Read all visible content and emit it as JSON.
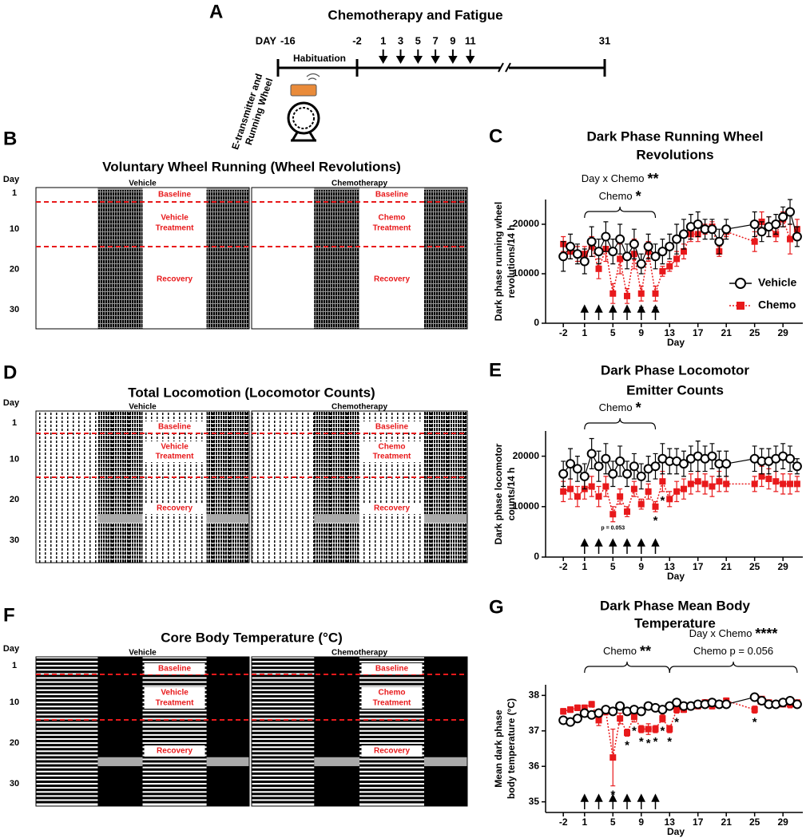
{
  "timeline": {
    "letter": "A",
    "title": "Chemotherapy and Fatigue",
    "day_prefix": "DAY",
    "start": -16,
    "treatment_start": -2,
    "dosing_days": [
      1,
      3,
      5,
      7,
      9,
      11
    ],
    "end": 31,
    "phase": "Habituation",
    "device": [
      "E-transmitter and",
      "Running Wheel"
    ]
  },
  "actograms": [
    {
      "letter": "B",
      "title": "Voluntary Wheel Running (Wheel Revolutions)",
      "day_label": "Day",
      "day_ticks": [
        1,
        10,
        20,
        30
      ],
      "panels": [
        {
          "name": "Vehicle",
          "phases": [
            [
              "Baseline"
            ],
            [
              "Vehicle",
              "Treatment"
            ],
            [
              "Recovery"
            ]
          ]
        },
        {
          "name": "Chemotherapy",
          "phases": [
            [
              "Baseline"
            ],
            [
              "Chemo",
              "Treatment"
            ],
            [
              "Recovery"
            ]
          ]
        }
      ]
    },
    {
      "letter": "D",
      "title": "Total Locomotion (Locomotor Counts)",
      "day_label": "Day",
      "day_ticks": [
        1,
        10,
        20,
        30
      ],
      "panels": [
        {
          "name": "Vehicle",
          "phases": [
            [
              "Baseline"
            ],
            [
              "Vehicle",
              "Treatment"
            ],
            [
              "Recovery"
            ]
          ]
        },
        {
          "name": "Chemotherapy",
          "phases": [
            [
              "Baseline"
            ],
            [
              "Chemo",
              "Treatment"
            ],
            [
              "Recovery"
            ]
          ]
        }
      ]
    },
    {
      "letter": "F",
      "title": "Core Body Temperature (°C)",
      "day_label": "Day",
      "day_ticks": [
        1,
        10,
        20,
        30
      ],
      "panels": [
        {
          "name": "Vehicle",
          "phases": [
            [
              "Baseline"
            ],
            [
              "Vehicle",
              "Treatment"
            ],
            [
              "Recovery"
            ]
          ]
        },
        {
          "name": "Chemotherapy",
          "phases": [
            [
              "Baseline"
            ],
            [
              "Chemo",
              "Treatment"
            ],
            [
              "Recovery"
            ]
          ]
        }
      ]
    }
  ],
  "chart_data": [
    {
      "type": "line",
      "letter": "C",
      "title": [
        "Dark Phase Running Wheel",
        "Revolutions"
      ],
      "ylabel": [
        "Dark phase running wheel",
        "revolutions/14 h"
      ],
      "xlabel": "Day",
      "x": [
        -2,
        -1,
        0,
        1,
        2,
        3,
        4,
        5,
        6,
        7,
        8,
        9,
        10,
        11,
        12,
        13,
        14,
        15,
        16,
        17,
        18,
        19,
        20,
        21,
        25,
        26,
        27,
        28,
        29,
        30,
        31
      ],
      "xlim": [
        -4.5,
        31.8
      ],
      "xticks": [
        -2,
        1,
        5,
        9,
        13,
        17,
        21,
        25,
        29
      ],
      "ylim": [
        0,
        25000
      ],
      "yticks": [
        0,
        10000,
        20000
      ],
      "legend": true,
      "legend_corner": "right",
      "dosing_days": [
        1,
        3,
        5,
        7,
        9,
        11
      ],
      "brackets": [
        {
          "from": 1,
          "to": 11,
          "lines": [
            {
              "text": "Day x Chemo",
              "stars": "**"
            },
            {
              "text": "Chemo",
              "stars": "*"
            }
          ]
        }
      ],
      "significance": [
        {
          "day": 5,
          "label": "*"
        },
        {
          "day": 7,
          "label": "*"
        },
        {
          "day": 9,
          "label": "*"
        },
        {
          "day": 11,
          "label": "*"
        }
      ],
      "series": [
        {
          "name": "Vehicle",
          "color": "#000000",
          "marker": "circle",
          "line_style": "solid",
          "values": [
            13500,
            15500,
            14000,
            12500,
            16500,
            14500,
            17500,
            14500,
            17000,
            13500,
            16000,
            12000,
            15500,
            13500,
            14500,
            15500,
            17000,
            18000,
            19500,
            20000,
            19000,
            19000,
            16500,
            19000,
            20000,
            18500,
            19500,
            20000,
            21500,
            22500,
            17500
          ],
          "errors": [
            3000,
            2500,
            2000,
            2500,
            3000,
            2500,
            3000,
            2500,
            3000,
            2500,
            3000,
            2000,
            2500,
            2500,
            2500,
            2500,
            3000,
            3000,
            2500,
            2500,
            2000,
            2000,
            2500,
            2000,
            2500,
            2000,
            2000,
            2000,
            2000,
            2500,
            2000
          ]
        },
        {
          "name": "Chemo",
          "color": "#e8191b",
          "marker": "square",
          "line_style": "dotted",
          "values": [
            16000,
            14500,
            14000,
            14000,
            15500,
            11000,
            15000,
            6000,
            13000,
            5500,
            14000,
            6000,
            14500,
            6000,
            10500,
            11500,
            13000,
            14500,
            18000,
            18000,
            19000,
            19500,
            14500,
            18500,
            16500,
            20500,
            19500,
            18000,
            21000,
            17000,
            19000
          ],
          "errors": [
            1500,
            1500,
            1500,
            1500,
            2000,
            2000,
            2500,
            2000,
            3000,
            1500,
            3000,
            1500,
            2000,
            1500,
            1000,
            1000,
            1500,
            1500,
            1500,
            1500,
            1000,
            1000,
            1000,
            1000,
            2000,
            2000,
            2000,
            1500,
            1500,
            3000,
            2000
          ]
        }
      ]
    },
    {
      "type": "line",
      "letter": "E",
      "title": [
        "Dark Phase Locomotor",
        "Emitter Counts"
      ],
      "ylabel": [
        "Dark phase locomotor",
        "counts/14 h"
      ],
      "xlabel": "Day",
      "x": [
        -2,
        -1,
        0,
        1,
        2,
        3,
        4,
        5,
        6,
        7,
        8,
        9,
        10,
        11,
        12,
        13,
        14,
        15,
        16,
        17,
        18,
        19,
        20,
        21,
        25,
        26,
        27,
        28,
        29,
        30,
        31
      ],
      "xlim": [
        -4.5,
        31.8
      ],
      "xticks": [
        -2,
        1,
        5,
        9,
        13,
        17,
        21,
        25,
        29
      ],
      "ylim": [
        0,
        25000
      ],
      "yticks": [
        0,
        10000,
        20000
      ],
      "legend": false,
      "dosing_days": [
        1,
        3,
        5,
        7,
        9,
        11
      ],
      "brackets": [
        {
          "from": 1,
          "to": 11,
          "lines": [
            {
              "text": "Chemo",
              "stars": "*"
            }
          ]
        }
      ],
      "significance": [
        {
          "day": 11,
          "label": "*"
        },
        {
          "day": 12,
          "label": "*"
        }
      ],
      "note": {
        "text": "p = 0.053",
        "day": 5
      },
      "series": [
        {
          "name": "Vehicle",
          "color": "#000000",
          "marker": "circle",
          "line_style": "solid",
          "values": [
            16500,
            18500,
            17500,
            16000,
            20500,
            18000,
            19500,
            16500,
            19000,
            16500,
            18000,
            16000,
            17500,
            18000,
            19500,
            19000,
            19000,
            18500,
            19500,
            20000,
            19500,
            20000,
            18500,
            18500,
            19500,
            19000,
            19000,
            19500,
            20000,
            19500,
            18000
          ],
          "errors": [
            2500,
            3000,
            2500,
            2500,
            3000,
            3000,
            3000,
            2500,
            3000,
            2500,
            2500,
            2500,
            2500,
            2500,
            3000,
            2500,
            2500,
            2500,
            2500,
            3000,
            2500,
            2500,
            2500,
            2500,
            2500,
            2500,
            2500,
            2500,
            2500,
            2500,
            1500
          ]
        },
        {
          "name": "Chemo",
          "color": "#e8191b",
          "marker": "square",
          "line_style": "dotted",
          "values": [
            13000,
            13500,
            12000,
            13500,
            14000,
            12000,
            14000,
            8500,
            12000,
            9000,
            13500,
            10500,
            13000,
            10000,
            15000,
            11500,
            13000,
            13500,
            14500,
            15000,
            14500,
            14000,
            15000,
            14500,
            14500,
            16000,
            15500,
            15000,
            14500,
            14500,
            14500
          ],
          "errors": [
            2000,
            2000,
            2000,
            2000,
            2000,
            2000,
            2000,
            1500,
            1500,
            1000,
            1500,
            1000,
            1500,
            1000,
            2000,
            1500,
            2000,
            2000,
            2000,
            2000,
            2000,
            2000,
            2000,
            1500,
            1500,
            2000,
            2000,
            2000,
            2000,
            2000,
            1500
          ]
        }
      ]
    },
    {
      "type": "line",
      "letter": "G",
      "title": [
        "Dark Phase Mean Body",
        "Temperature"
      ],
      "ylabel": [
        "Mean dark phase",
        "body temperature (°C)"
      ],
      "xlabel": "Day",
      "x": [
        -2,
        -1,
        0,
        1,
        2,
        3,
        4,
        5,
        6,
        7,
        8,
        9,
        10,
        11,
        12,
        13,
        14,
        15,
        16,
        17,
        18,
        19,
        20,
        21,
        25,
        26,
        27,
        28,
        29,
        30,
        31
      ],
      "xlim": [
        -4.5,
        31.8
      ],
      "xticks": [
        -2,
        1,
        5,
        9,
        13,
        17,
        21,
        25,
        29
      ],
      "ylim": [
        34.7,
        38.3
      ],
      "yticks": [
        35,
        36,
        37,
        38
      ],
      "legend": false,
      "dosing_days": [
        1,
        3,
        5,
        7,
        9,
        11
      ],
      "brackets": [
        {
          "from": 1,
          "to": 13,
          "lines": [
            {
              "text": "Chemo",
              "stars": "**"
            }
          ]
        },
        {
          "from": 13,
          "to": 31,
          "lines": [
            {
              "text": "Day x Chemo",
              "stars": "****"
            },
            {
              "text": "Chemo p = 0.056"
            }
          ]
        }
      ],
      "significance": [
        {
          "day": 5,
          "label": "*"
        },
        {
          "day": 7,
          "label": "*"
        },
        {
          "day": 8,
          "label": "*"
        },
        {
          "day": 9,
          "label": "*"
        },
        {
          "day": 10,
          "label": "*"
        },
        {
          "day": 11,
          "label": "*"
        },
        {
          "day": 12,
          "label": "*"
        },
        {
          "day": 13,
          "label": "*"
        },
        {
          "day": 14,
          "label": "*"
        },
        {
          "day": 25,
          "label": "*"
        }
      ],
      "series": [
        {
          "name": "Vehicle",
          "color": "#000000",
          "marker": "circle",
          "line_style": "solid",
          "values": [
            37.3,
            37.25,
            37.35,
            37.5,
            37.45,
            37.5,
            37.6,
            37.55,
            37.7,
            37.55,
            37.6,
            37.55,
            37.7,
            37.65,
            37.6,
            37.7,
            37.8,
            37.7,
            37.7,
            37.75,
            37.75,
            37.8,
            37.75,
            37.75,
            37.95,
            37.85,
            37.75,
            37.75,
            37.8,
            37.85,
            37.75
          ],
          "errors": [
            0.1,
            0.1,
            0.1,
            0.08,
            0.1,
            0.08,
            0.1,
            0.1,
            0.08,
            0.08,
            0.08,
            0.08,
            0.08,
            0.08,
            0.08,
            0.08,
            0.08,
            0.08,
            0.08,
            0.08,
            0.08,
            0.08,
            0.08,
            0.08,
            0.08,
            0.05,
            0.05,
            0.05,
            0.05,
            0.08,
            0.05
          ]
        },
        {
          "name": "Chemo",
          "color": "#e8191b",
          "marker": "square",
          "line_style": "dotted",
          "values": [
            37.55,
            37.6,
            37.65,
            37.65,
            37.75,
            37.3,
            37.55,
            36.25,
            37.35,
            36.95,
            37.4,
            37.05,
            37.05,
            37.05,
            37.35,
            37.05,
            37.6,
            37.6,
            37.7,
            37.7,
            37.8,
            37.7,
            37.75,
            37.85,
            37.6,
            37.9,
            37.8,
            37.75,
            37.75,
            37.75,
            37.8
          ],
          "errors": [
            0.08,
            0.08,
            0.08,
            0.08,
            0.08,
            0.15,
            0.1,
            0.8,
            0.15,
            0.1,
            0.15,
            0.1,
            0.15,
            0.1,
            0.1,
            0.1,
            0.1,
            0.08,
            0.08,
            0.08,
            0.08,
            0.08,
            0.08,
            0.08,
            0.1,
            0.05,
            0.05,
            0.05,
            0.05,
            0.1,
            0.05
          ]
        }
      ]
    }
  ]
}
